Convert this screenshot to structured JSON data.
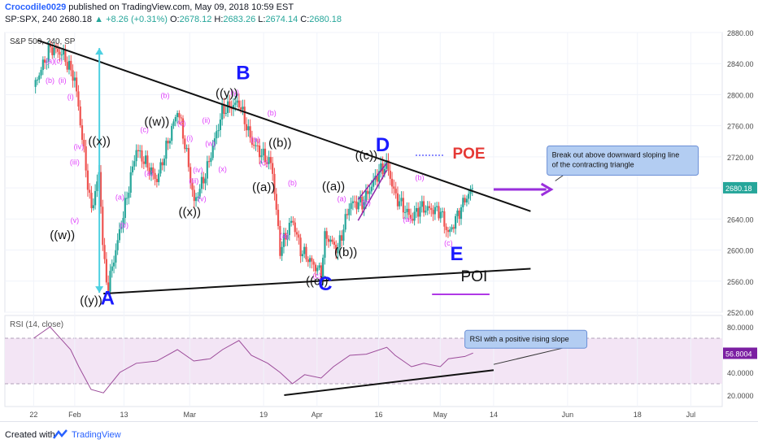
{
  "header": {
    "author": "Crocodile0029",
    "published": " published on TradingView.com, May 09, 2018 10:59 EST",
    "symbol": "SP:SPX, 240",
    "change_arrow": "▲",
    "change": "+8.26 (+0.31%)",
    "last_price": "2680.18",
    "o_label": "O:",
    "o": "2678.12",
    "h_label": "H:",
    "h": "2683.26",
    "l_label": "L:",
    "l": "2674.14",
    "c_label": "C:",
    "c": "2680.18"
  },
  "footer": {
    "created_with": "Created with",
    "brand": "TradingView"
  },
  "colors": {
    "up": "#26a69a",
    "down": "#ef5350",
    "wave": "#e040fb",
    "label": "#1a1aff",
    "rsi": "#9c4c9a",
    "rsi_band": "#f3e5f5",
    "arrow": "#9a2fdc",
    "poe": "#e53935",
    "annotation_bg": "#b3cdf2"
  },
  "chart_data": [
    {
      "type": "candlestick",
      "title": "S&P 500, 240, SP",
      "ylim": [
        2520,
        2880
      ],
      "yticks": [
        "2520.00",
        "2560.00",
        "2600.00",
        "2640.00",
        "2680.00",
        "2720.00",
        "2760.00",
        "2800.00",
        "2840.00",
        "2880.00"
      ],
      "xticks": [
        "22",
        "Feb",
        "13",
        "Mar",
        "19",
        "Apr",
        "16",
        "May",
        "14",
        "Jun",
        "18",
        "Jul"
      ],
      "price_tag": "2680.18",
      "path_dates": [
        "2018-01-22",
        "2018-01-26",
        "2018-01-29",
        "2018-02-01",
        "2018-02-02",
        "2018-02-05",
        "2018-02-07",
        "2018-02-08",
        "2018-02-09",
        "2018-02-13",
        "2018-02-16",
        "2018-02-21",
        "2018-02-26",
        "2018-02-27",
        "2018-03-01",
        "2018-03-02",
        "2018-03-05",
        "2018-03-09",
        "2018-03-13",
        "2018-03-16",
        "2018-03-19",
        "2018-03-21",
        "2018-03-23",
        "2018-03-26",
        "2018-03-28",
        "2018-04-02",
        "2018-04-03",
        "2018-04-06",
        "2018-04-09",
        "2018-04-12",
        "2018-04-16",
        "2018-04-18",
        "2018-04-20",
        "2018-04-24",
        "2018-04-26",
        "2018-05-01",
        "2018-05-03",
        "2018-05-07",
        "2018-05-09"
      ],
      "path_values": [
        2810,
        2860,
        2853,
        2820,
        2780,
        2650,
        2700,
        2590,
        2550,
        2650,
        2730,
        2690,
        2780,
        2760,
        2700,
        2660,
        2700,
        2780,
        2790,
        2740,
        2720,
        2710,
        2600,
        2640,
        2600,
        2570,
        2620,
        2600,
        2660,
        2660,
        2700,
        2710,
        2670,
        2640,
        2655,
        2650,
        2620,
        2665,
        2680
      ],
      "waves": [
        {
          "text": "(a)",
          "date": "2018-01-26",
          "value": 2840
        },
        {
          "text": "(c)",
          "date": "2018-01-28",
          "value": 2840
        },
        {
          "text": "(b)",
          "date": "2018-01-26",
          "value": 2815
        },
        {
          "text": "(ii)",
          "date": "2018-01-29",
          "value": 2815
        },
        {
          "text": "(i)",
          "date": "2018-01-31",
          "value": 2794
        },
        {
          "text": "(iii)",
          "date": "2018-02-01",
          "value": 2710
        },
        {
          "text": "(iv)",
          "date": "2018-02-02",
          "value": 2730
        },
        {
          "text": "(v)",
          "date": "2018-02-01",
          "value": 2635
        },
        {
          "text": "(a)",
          "date": "2018-02-12",
          "value": 2665
        },
        {
          "text": "(b)",
          "date": "2018-02-13",
          "value": 2629
        },
        {
          "text": "(c)",
          "date": "2018-02-18",
          "value": 2752
        },
        {
          "text": "(a)",
          "date": "2018-02-19",
          "value": 2696
        },
        {
          "text": "(b)",
          "date": "2018-02-23",
          "value": 2796
        },
        {
          "text": "(c)",
          "date": "2018-02-27",
          "value": 2760
        },
        {
          "text": "(i)",
          "date": "2018-03-01",
          "value": 2741
        },
        {
          "text": "(ii)",
          "date": "2018-03-05",
          "value": 2764
        },
        {
          "text": "(w)",
          "date": "2018-03-06",
          "value": 2734
        },
        {
          "text": "(iv)",
          "date": "2018-03-03",
          "value": 2700
        },
        {
          "text": "(iii)",
          "date": "2018-03-02",
          "value": 2686
        },
        {
          "text": "(v)",
          "date": "2018-03-04",
          "value": 2663
        },
        {
          "text": "(x)",
          "date": "2018-03-09",
          "value": 2701
        },
        {
          "text": "(y)",
          "date": "2018-03-12",
          "value": 2800
        },
        {
          "text": "(a)",
          "date": "2018-03-17",
          "value": 2739
        },
        {
          "text": "(b)",
          "date": "2018-03-21",
          "value": 2773
        },
        {
          "text": "(c)",
          "date": "2018-03-19",
          "value": 2709
        },
        {
          "text": "(b)",
          "date": "2018-03-26",
          "value": 2683
        },
        {
          "text": "(a)",
          "date": "2018-03-24",
          "value": 2615
        },
        {
          "text": "(c)",
          "date": "2018-04-01",
          "value": 2564
        },
        {
          "text": "(a)",
          "date": "2018-04-07",
          "value": 2663
        },
        {
          "text": "(b)",
          "date": "2018-04-13",
          "value": 2658
        },
        {
          "text": "(b)",
          "date": "2018-04-26",
          "value": 2690
        },
        {
          "text": "(a)",
          "date": "2018-04-23",
          "value": 2636
        },
        {
          "text": "(c)",
          "date": "2018-05-03",
          "value": 2606
        }
      ],
      "degree_labels": [
        {
          "text": "((w))",
          "date": "2018-01-29",
          "value": 2614
        },
        {
          "text": "((x))",
          "date": "2018-02-07",
          "value": 2735
        },
        {
          "text": "((y))",
          "date": "2018-02-05",
          "value": 2530
        },
        {
          "text": "((w))",
          "date": "2018-02-21",
          "value": 2760
        },
        {
          "text": "((x))",
          "date": "2018-03-01",
          "value": 2644
        },
        {
          "text": "((y))",
          "date": "2018-03-10",
          "value": 2797
        },
        {
          "text": "((b))",
          "date": "2018-03-23",
          "value": 2733
        },
        {
          "text": "((a))",
          "date": "2018-03-19",
          "value": 2676
        },
        {
          "text": "((a))",
          "date": "2018-04-05",
          "value": 2677
        },
        {
          "text": "((b))",
          "date": "2018-04-08",
          "value": 2592
        },
        {
          "text": "((c))",
          "date": "2018-04-01",
          "value": 2555
        },
        {
          "text": "((c))",
          "date": "2018-04-13",
          "value": 2717
        }
      ],
      "wave_labels": [
        {
          "text": "A",
          "date": "2018-02-09",
          "value": 2530
        },
        {
          "text": "B",
          "date": "2018-03-14",
          "value": 2820
        },
        {
          "text": "C",
          "date": "2018-04-03",
          "value": 2548
        },
        {
          "text": "D",
          "date": "2018-04-17",
          "value": 2727
        },
        {
          "text": "E",
          "date": "2018-05-05",
          "value": 2587
        }
      ],
      "trendlines": [
        {
          "name": "upper",
          "from": {
            "date": "2018-01-23",
            "value": 2870
          },
          "to": {
            "date": "2018-05-23",
            "value": 2650
          }
        },
        {
          "name": "lower",
          "from": {
            "date": "2018-02-08",
            "value": 2544
          },
          "to": {
            "date": "2018-05-23",
            "value": 2576
          }
        }
      ],
      "poe": {
        "text": "POE",
        "date": "2018-05-04",
        "value": 2718
      },
      "poi": {
        "text": "POI",
        "date": "2018-05-06",
        "value": 2560
      },
      "poe_dotted": {
        "from": {
          "date": "2018-04-25",
          "value": 2722
        },
        "to": {
          "date": "2018-05-02",
          "value": 2722
        }
      },
      "poi_line": {
        "from": {
          "date": "2018-04-29",
          "value": 2543
        },
        "to": {
          "date": "2018-05-13",
          "value": 2543
        }
      },
      "vertical_arrow": {
        "date": "2018-02-07",
        "from": 2545,
        "to": 2860
      },
      "breakout_arrow": {
        "from": {
          "date": "2018-05-14",
          "value": 2678
        },
        "to": {
          "date": "2018-05-28",
          "value": 2678
        }
      },
      "d_channel": [
        {
          "from": {
            "date": "2018-04-11",
            "value": 2665
          },
          "to": {
            "date": "2018-04-18",
            "value": 2712
          }
        },
        {
          "from": {
            "date": "2018-04-11",
            "value": 2638
          },
          "to": {
            "date": "2018-04-18",
            "value": 2703
          }
        }
      ],
      "callout": {
        "lines": [
          "Break out above downward sloping line",
          "of the contracting triangle"
        ]
      }
    },
    {
      "type": "line",
      "title": "RSI (14, close)",
      "ylim": [
        10,
        90
      ],
      "yticks": [
        "20.0000",
        "40.0000",
        "60.0000",
        "80.0000"
      ],
      "band": [
        30,
        70
      ],
      "value_tag": "56.8004",
      "x": [
        "2018-01-22",
        "2018-01-26",
        "2018-01-29",
        "2018-01-31",
        "2018-02-02",
        "2018-02-05",
        "2018-02-08",
        "2018-02-12",
        "2018-02-16",
        "2018-02-21",
        "2018-02-26",
        "2018-03-02",
        "2018-03-06",
        "2018-03-09",
        "2018-03-13",
        "2018-03-16",
        "2018-03-20",
        "2018-03-23",
        "2018-03-26",
        "2018-03-29",
        "2018-04-02",
        "2018-04-05",
        "2018-04-09",
        "2018-04-13",
        "2018-04-18",
        "2018-04-20",
        "2018-04-24",
        "2018-04-27",
        "2018-05-01",
        "2018-05-03",
        "2018-05-07",
        "2018-05-09"
      ],
      "values": [
        70,
        80,
        68,
        60,
        45,
        25,
        22,
        40,
        48,
        50,
        60,
        50,
        52,
        60,
        68,
        55,
        48,
        40,
        30,
        38,
        35,
        45,
        55,
        56,
        62,
        55,
        45,
        48,
        45,
        52,
        54,
        57
      ],
      "trendline": {
        "from": {
          "date": "2018-03-24",
          "value": 20
        },
        "to": {
          "date": "2018-05-14",
          "value": 42
        }
      },
      "callout": {
        "text": "RSI with a positive rising slope"
      }
    }
  ]
}
